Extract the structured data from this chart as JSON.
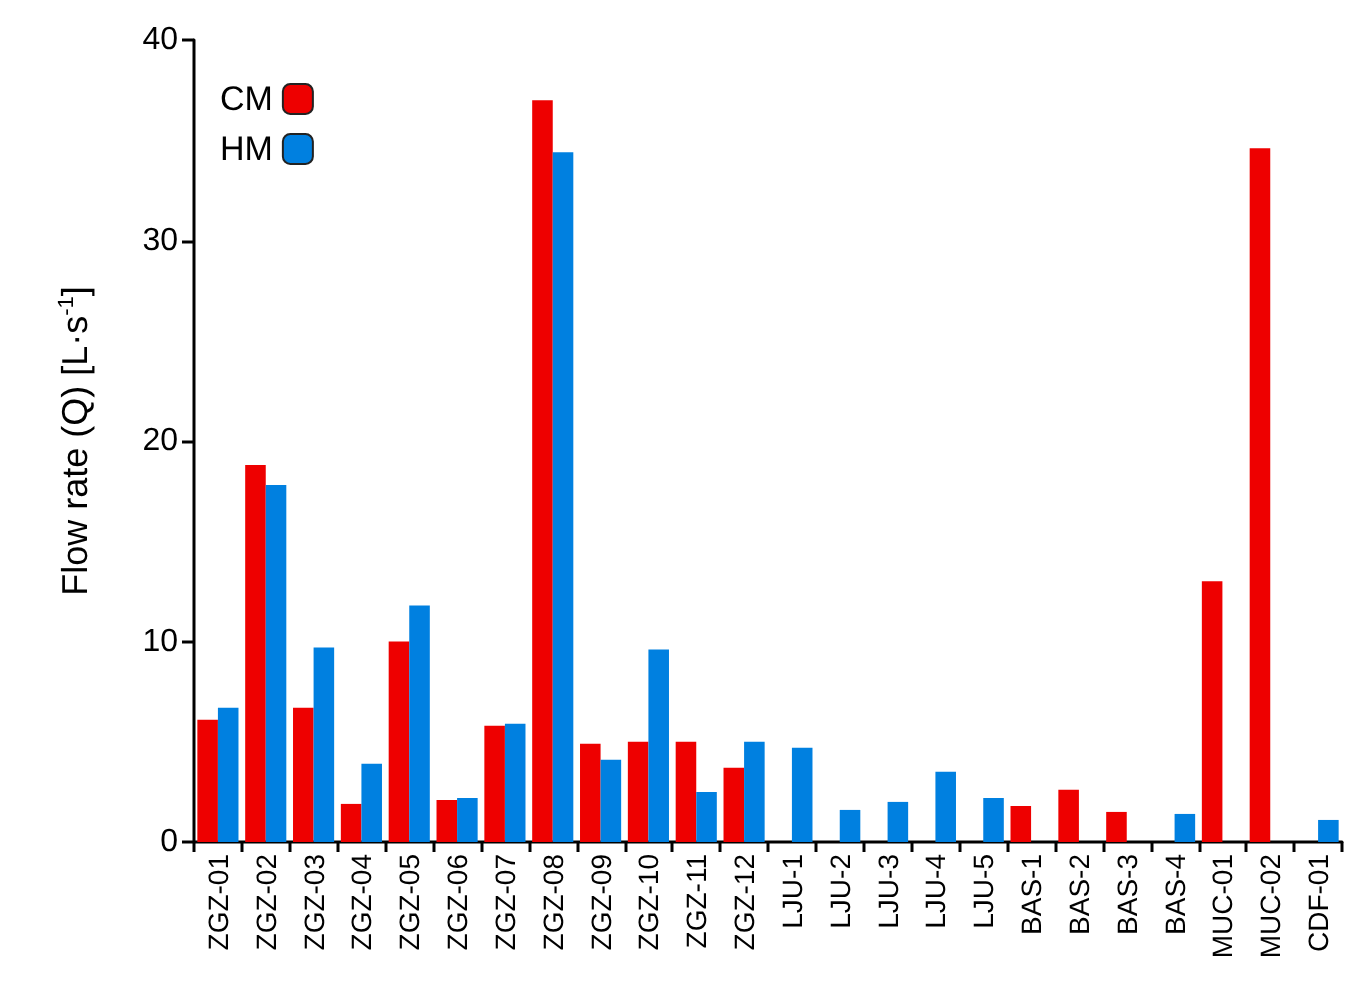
{
  "chart_data": {
    "type": "bar",
    "ylabel": "Flow rate (Q) [L·s$^{-1}$]",
    "categories": [
      "ZGZ-01",
      "ZGZ-02",
      "ZGZ-03",
      "ZGZ-04",
      "ZGZ-05",
      "ZGZ-06",
      "ZGZ-07",
      "ZGZ-08",
      "ZGZ-09",
      "ZGZ-10",
      "ZGZ-11",
      "ZGZ-12",
      "LJU-1",
      "LJU-2",
      "LJU-3",
      "LJU-4",
      "LJU-5",
      "BAS-1",
      "BAS-2",
      "BAS-3",
      "BAS-4",
      "MUC-01",
      "MUC-02",
      "CDF-01"
    ],
    "series": [
      {
        "name": "CM",
        "color": "#ee0000",
        "values": [
          6.1,
          18.8,
          6.7,
          1.9,
          10.0,
          2.1,
          5.8,
          37.0,
          4.9,
          5.0,
          5.0,
          3.7,
          null,
          null,
          null,
          null,
          null,
          1.8,
          2.6,
          1.5,
          null,
          13.0,
          34.6,
          null
        ]
      },
      {
        "name": "HM",
        "color": "#0080e0",
        "values": [
          6.7,
          17.8,
          9.7,
          3.9,
          11.8,
          2.2,
          5.9,
          34.4,
          4.1,
          9.6,
          2.5,
          5.0,
          4.7,
          1.6,
          2.0,
          3.5,
          2.2,
          null,
          null,
          null,
          1.4,
          null,
          null,
          1.1
        ]
      }
    ],
    "ylim": [
      0,
      40
    ],
    "yticks": [
      0,
      10,
      20,
      30,
      40
    ],
    "grid": false,
    "legend": "top left"
  }
}
